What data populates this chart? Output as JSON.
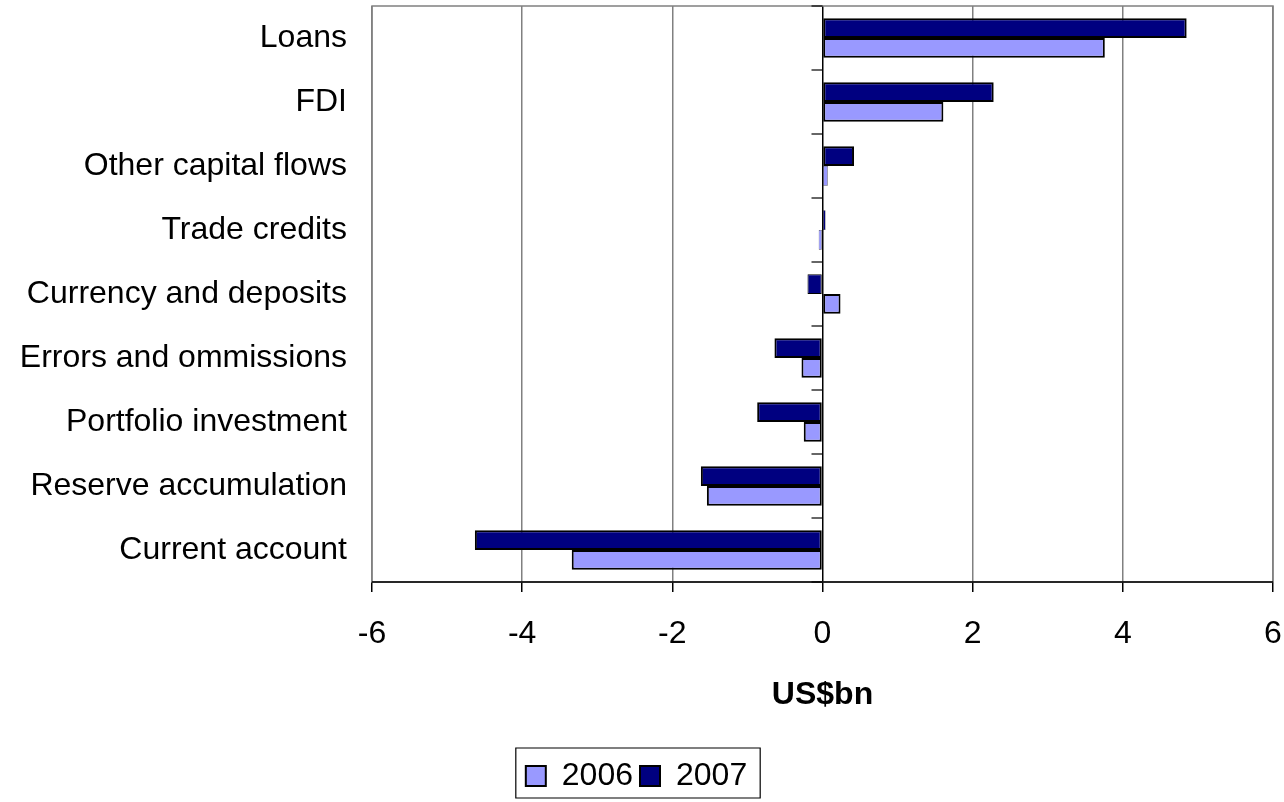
{
  "chart_data": {
    "type": "bar",
    "orientation": "horizontal",
    "categories": [
      "Loans",
      "FDI",
      "Other capital flows",
      "Trade credits",
      "Currency and deposits",
      "Errors and ommissions",
      "Portfolio investment",
      "Reserve accumulation",
      "Current account"
    ],
    "series": [
      {
        "name": "2006",
        "color": "#9999ff",
        "values": [
          3.76,
          1.61,
          0.07,
          -0.05,
          0.24,
          -0.28,
          -0.25,
          -1.54,
          -3.34
        ]
      },
      {
        "name": "2007",
        "color": "#000080",
        "values": [
          4.85,
          2.28,
          0.42,
          0.04,
          -0.2,
          -0.64,
          -0.87,
          -1.62,
          -4.63
        ]
      }
    ],
    "xlabel": "US$bn",
    "xlim": [
      -6,
      6
    ],
    "xticks": [
      -6,
      -4,
      -2,
      0,
      2,
      4,
      6
    ],
    "grid": "x",
    "legend": "bottom"
  }
}
